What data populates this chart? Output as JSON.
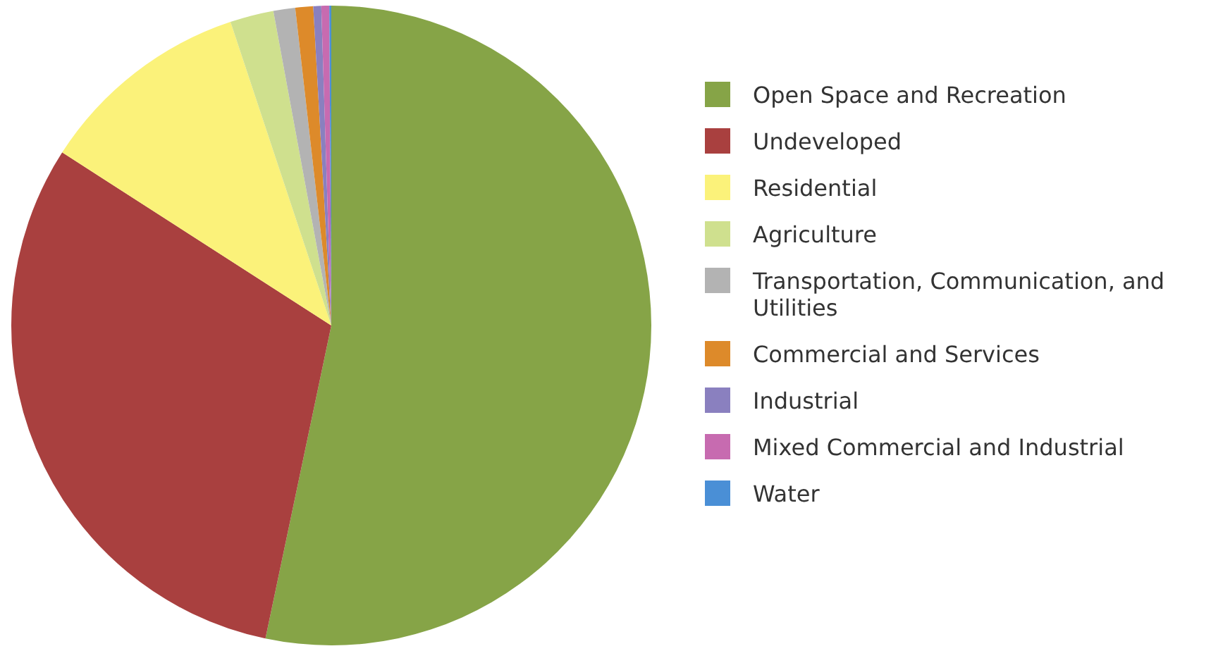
{
  "chart_data": {
    "type": "pie",
    "categories": [
      "Open Space and Recreation",
      "Undeveloped",
      "Residential",
      "Agriculture",
      "Transportation, Communication, and Utilities",
      "Commercial and Services",
      "Industrial",
      "Mixed Commercial and Industrial",
      "Water"
    ],
    "values": [
      53.3,
      30.8,
      10.8,
      2.2,
      1.1,
      0.9,
      0.4,
      0.4,
      0.1
    ],
    "colors": [
      "#86a447",
      "#a9403f",
      "#fbf27a",
      "#cfe08e",
      "#b3b3b3",
      "#dd8a2a",
      "#8a80bf",
      "#c76bb0",
      "#4a8fd6"
    ],
    "legend": "right"
  }
}
